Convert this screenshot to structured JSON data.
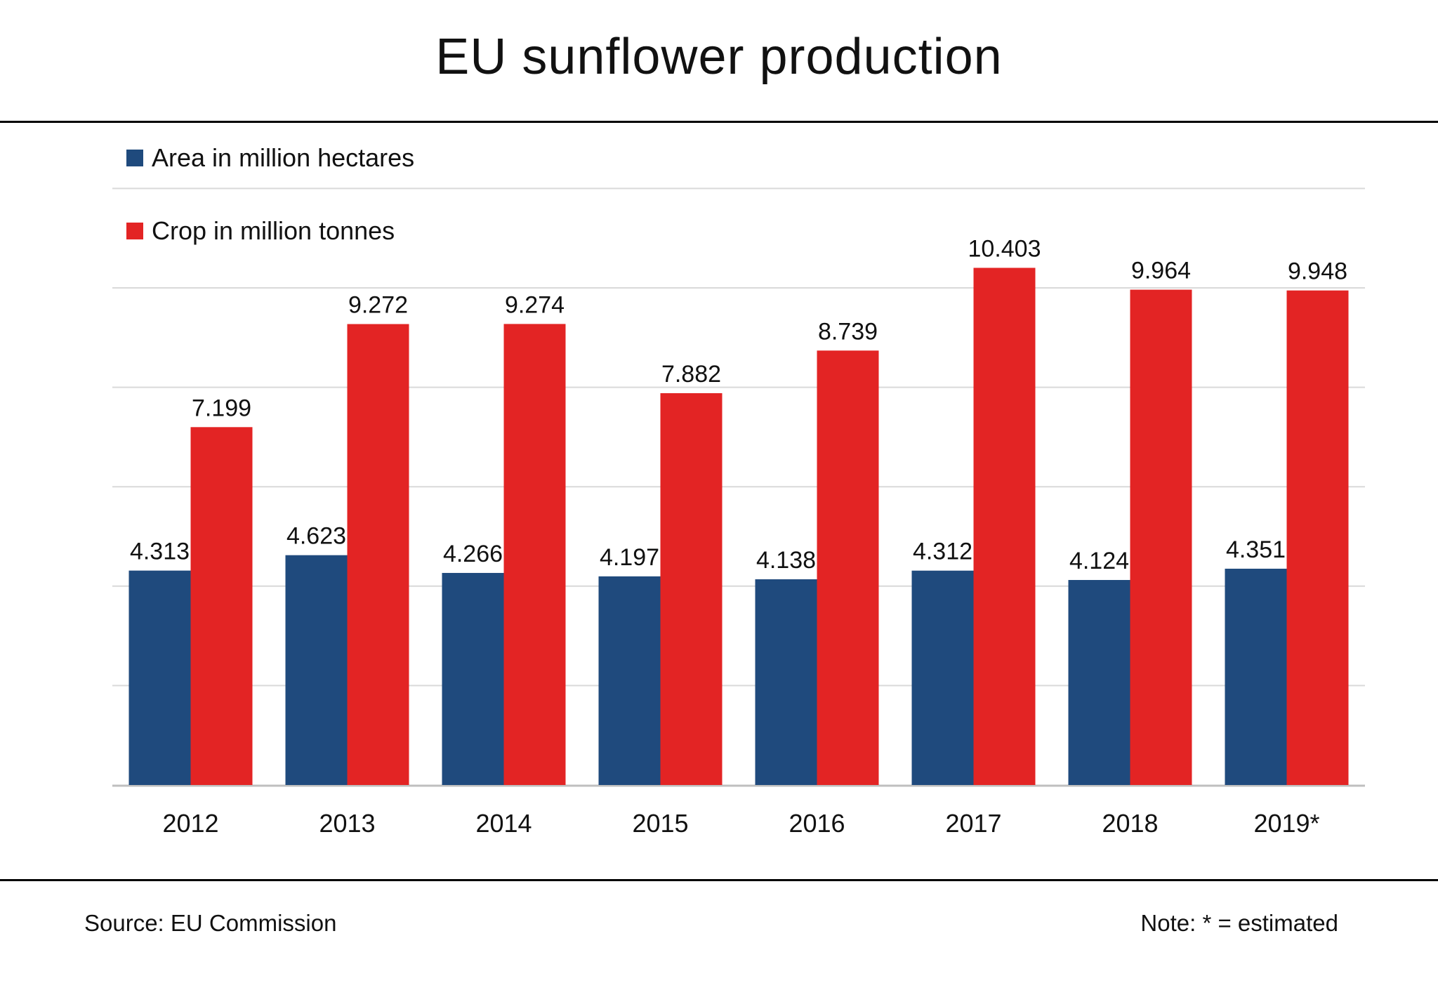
{
  "title": "EU sunflower production",
  "colors": {
    "area": "#1f4a7d",
    "crop": "#e32424",
    "grid": "#d9d9d9",
    "axis": "#bfbfbf"
  },
  "chart_data": {
    "type": "bar",
    "title": "EU sunflower production",
    "categories": [
      "2012",
      "2013",
      "2014",
      "2015",
      "2016",
      "2017",
      "2018",
      "2019*"
    ],
    "series": [
      {
        "name": "Area in million hectares",
        "color": "#1f4a7d",
        "values": [
          4.313,
          4.623,
          4.266,
          4.197,
          4.138,
          4.312,
          4.124,
          4.351
        ],
        "labels": [
          "4.313",
          "4.623",
          "4.266",
          "4.197",
          "4.138",
          "4.312",
          "4.124",
          "4.351"
        ]
      },
      {
        "name": "Crop in million tonnes",
        "color": "#e32424",
        "values": [
          7.199,
          9.272,
          9.274,
          7.882,
          8.739,
          10.403,
          9.964,
          9.948
        ],
        "labels": [
          "7.199",
          "9.272",
          "9.274",
          "7.882",
          "8.739",
          "10.403",
          "9.964",
          "9.948"
        ]
      }
    ],
    "ylim": [
      0,
      12
    ],
    "gridline_step": 2,
    "grid": true,
    "legend_position": "top-left",
    "xlabel": "",
    "ylabel": ""
  },
  "footer": {
    "source": "Source:  EU Commission",
    "note": "Note: * = estimated"
  }
}
